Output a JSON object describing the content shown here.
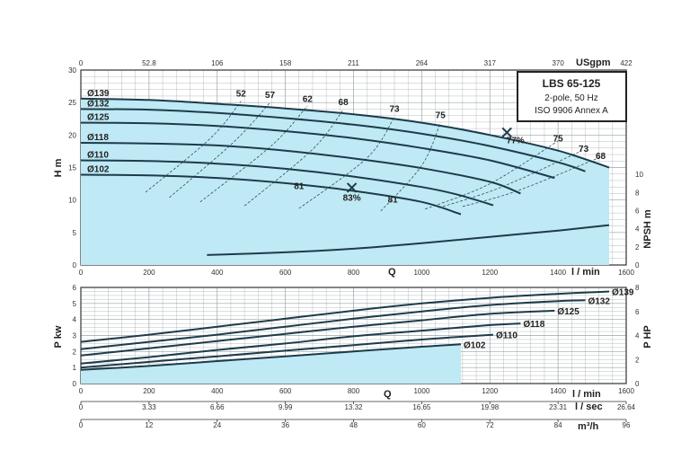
{
  "colors": {
    "fill": "#bfe9f4",
    "curve": "#1d3b4a",
    "grid": "#9aa4a8",
    "frame": "#333333"
  },
  "info_box": {
    "title": "LBS 65-125",
    "line1": "2-pole, 50 Hz",
    "line2": "ISO 9906 Annex A"
  },
  "chart_data": [
    {
      "type": "line",
      "name": "head",
      "x_axis": {
        "label": "Q",
        "unit": "l / min",
        "range": [
          0,
          1600
        ],
        "ticks": [
          0,
          200,
          400,
          600,
          800,
          1000,
          1200,
          1400,
          1600
        ]
      },
      "x_axis_top": {
        "unit": "USgpm",
        "ticks": [
          "0",
          "52.8",
          "106",
          "158",
          "211",
          "264",
          "317",
          "370",
          "422"
        ]
      },
      "y_axis": {
        "label": "H m",
        "range": [
          0,
          30
        ],
        "ticks": [
          0,
          5,
          10,
          15,
          20,
          25,
          30
        ]
      },
      "y_axis_right": {
        "label": "NPSH m",
        "range": [
          0,
          12
        ],
        "ticks": [
          0,
          2,
          4,
          6,
          8,
          10
        ]
      },
      "series": [
        {
          "name": "Ø139",
          "x": [
            0,
            200,
            400,
            600,
            800,
            1000,
            1200,
            1400,
            1550
          ],
          "y": [
            25.6,
            25.4,
            24.8,
            24.1,
            23.2,
            21.9,
            20.0,
            17.6,
            15.0
          ]
        },
        {
          "name": "Ø132",
          "x": [
            0,
            200,
            400,
            600,
            800,
            1000,
            1200,
            1400,
            1480
          ],
          "y": [
            24.0,
            23.9,
            23.4,
            22.6,
            21.6,
            20.2,
            18.3,
            15.8,
            14.4
          ]
        },
        {
          "name": "Ø125",
          "x": [
            0,
            200,
            400,
            600,
            800,
            1000,
            1200,
            1390
          ],
          "y": [
            21.9,
            21.8,
            21.4,
            20.6,
            19.5,
            18.0,
            16.1,
            13.4
          ]
        },
        {
          "name": "Ø118",
          "x": [
            0,
            200,
            400,
            600,
            800,
            1000,
            1200,
            1290
          ],
          "y": [
            18.8,
            18.7,
            18.4,
            17.6,
            16.4,
            14.9,
            12.8,
            11.0
          ]
        },
        {
          "name": "Ø110",
          "x": [
            0,
            200,
            400,
            600,
            800,
            1000,
            1100,
            1210
          ],
          "y": [
            16.1,
            16.0,
            15.6,
            14.8,
            13.6,
            12.0,
            10.9,
            9.2
          ]
        },
        {
          "name": "Ø102",
          "x": [
            0,
            200,
            400,
            600,
            800,
            1000,
            1115
          ],
          "y": [
            13.9,
            13.8,
            13.4,
            12.6,
            11.4,
            9.7,
            7.8
          ]
        },
        {
          "name": "NPSH",
          "axis": "right",
          "x": [
            370,
            600,
            800,
            1000,
            1200,
            1400,
            1550
          ],
          "y": [
            1.1,
            1.4,
            1.8,
            2.4,
            3.1,
            3.8,
            4.4
          ]
        }
      ],
      "efficiency_labels": [
        {
          "text": "52",
          "x": 470,
          "y": 25.9
        },
        {
          "text": "57",
          "x": 555,
          "y": 25.7
        },
        {
          "text": "62",
          "x": 665,
          "y": 25.1
        },
        {
          "text": "68",
          "x": 770,
          "y": 24.6
        },
        {
          "text": "73",
          "x": 920,
          "y": 23.6
        },
        {
          "text": "75",
          "x": 1055,
          "y": 22.6
        },
        {
          "text": "77%",
          "x": 1275,
          "y": 18.7
        },
        {
          "text": "75",
          "x": 1400,
          "y": 19.0
        },
        {
          "text": "73",
          "x": 1475,
          "y": 17.4
        },
        {
          "text": "68",
          "x": 1525,
          "y": 16.3
        },
        {
          "text": "81",
          "x": 640,
          "y": 11.7
        },
        {
          "text": "83%",
          "x": 795,
          "y": 9.9
        },
        {
          "text": "81",
          "x": 915,
          "y": 9.6
        }
      ],
      "best_efficiency_points": [
        {
          "x": 1250,
          "y": 20.4
        },
        {
          "x": 795,
          "y": 11.9
        }
      ]
    },
    {
      "type": "line",
      "name": "power",
      "x_axis": {
        "label": "Q",
        "unit": "l / min",
        "range": [
          0,
          1600
        ],
        "ticks": [
          0,
          200,
          400,
          600,
          800,
          1000,
          1200,
          1400,
          1600
        ]
      },
      "x_axis_lsec": {
        "unit": "l / sec",
        "ticks": [
          "0",
          "3.33",
          "6.66",
          "9.99",
          "13.32",
          "16.65",
          "19.98",
          "23.31",
          "26.64"
        ]
      },
      "x_axis_m3h": {
        "unit": "m³/h",
        "ticks": [
          "0",
          "12",
          "24",
          "36",
          "48",
          "60",
          "72",
          "84",
          "96"
        ]
      },
      "y_axis": {
        "label": "P kw",
        "range": [
          0,
          6
        ],
        "ticks": [
          0,
          1,
          2,
          3,
          4,
          5,
          6
        ]
      },
      "y_axis_right": {
        "label": "P HP",
        "range": [
          0,
          8
        ],
        "ticks": [
          0,
          2,
          4,
          6,
          8
        ]
      },
      "series": [
        {
          "name": "Ø139",
          "x": [
            0,
            200,
            400,
            600,
            800,
            1000,
            1200,
            1400,
            1550
          ],
          "y": [
            2.6,
            3.05,
            3.55,
            4.05,
            4.55,
            5.0,
            5.35,
            5.6,
            5.75
          ]
        },
        {
          "name": "Ø132",
          "x": [
            0,
            200,
            400,
            600,
            800,
            1000,
            1200,
            1400,
            1480
          ],
          "y": [
            2.15,
            2.6,
            3.05,
            3.55,
            4.05,
            4.5,
            4.9,
            5.15,
            5.2
          ]
        },
        {
          "name": "Ø125",
          "x": [
            0,
            200,
            400,
            600,
            800,
            1000,
            1200,
            1390
          ],
          "y": [
            1.75,
            2.2,
            2.65,
            3.1,
            3.55,
            3.95,
            4.35,
            4.55
          ]
        },
        {
          "name": "Ø118",
          "x": [
            0,
            200,
            400,
            600,
            800,
            1000,
            1200,
            1290
          ],
          "y": [
            1.25,
            1.65,
            2.1,
            2.5,
            2.95,
            3.3,
            3.65,
            3.75
          ]
        },
        {
          "name": "Ø110",
          "x": [
            0,
            200,
            400,
            600,
            800,
            1000,
            1100,
            1210
          ],
          "y": [
            1.0,
            1.35,
            1.7,
            2.05,
            2.4,
            2.75,
            2.9,
            3.05
          ]
        },
        {
          "name": "Ø102",
          "x": [
            0,
            200,
            400,
            600,
            800,
            1000,
            1115
          ],
          "y": [
            0.85,
            1.1,
            1.4,
            1.7,
            2.0,
            2.3,
            2.45
          ]
        }
      ]
    }
  ]
}
